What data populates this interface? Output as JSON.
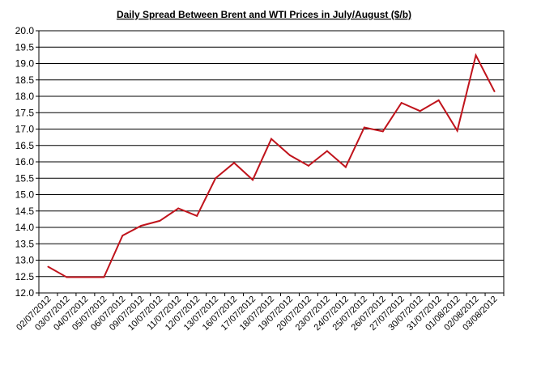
{
  "colors": {
    "line": "#c0141c",
    "grid": "#000000",
    "axis": "#000000",
    "background": "#ffffff"
  },
  "chart_data": {
    "type": "line",
    "title": "Daily  Spread Between Brent and WTI Prices in July/August  ($/b)",
    "xlabel": "",
    "ylabel": "",
    "ylim": [
      12.0,
      20.0
    ],
    "yticks": [
      "12.0",
      "12.5",
      "13.0",
      "13.5",
      "14.0",
      "14.5",
      "15.0",
      "15.5",
      "16.0",
      "16.5",
      "17.0",
      "17.5",
      "18.0",
      "18.5",
      "19.0",
      "19.5",
      "20.0"
    ],
    "grid": true,
    "legend": "none",
    "categories": [
      "02/07/2012",
      "03/07/2012",
      "04/07/2012",
      "05/07/2012",
      "06/07/2012",
      "09/07/2012",
      "10/07/2012",
      "11/07/2012",
      "12/07/2012",
      "13/07/2012",
      "16/07/2012",
      "17/07/2012",
      "18/07/2012",
      "19/07/2012",
      "20/07/2012",
      "23/07/2012",
      "24/07/2012",
      "25/07/2012",
      "26/07/2012",
      "27/07/2012",
      "30/07/2012",
      "31/07/2012",
      "01/08/2012",
      "02/08/2012",
      "03/08/2012"
    ],
    "series": [
      {
        "values": [
          12.8,
          12.48,
          12.48,
          12.48,
          13.75,
          14.05,
          14.2,
          14.58,
          14.35,
          15.5,
          15.97,
          15.45,
          16.7,
          16.2,
          15.88,
          16.33,
          15.84,
          17.05,
          16.93,
          17.8,
          17.55,
          17.88,
          16.95,
          19.25,
          18.15
        ]
      }
    ]
  }
}
